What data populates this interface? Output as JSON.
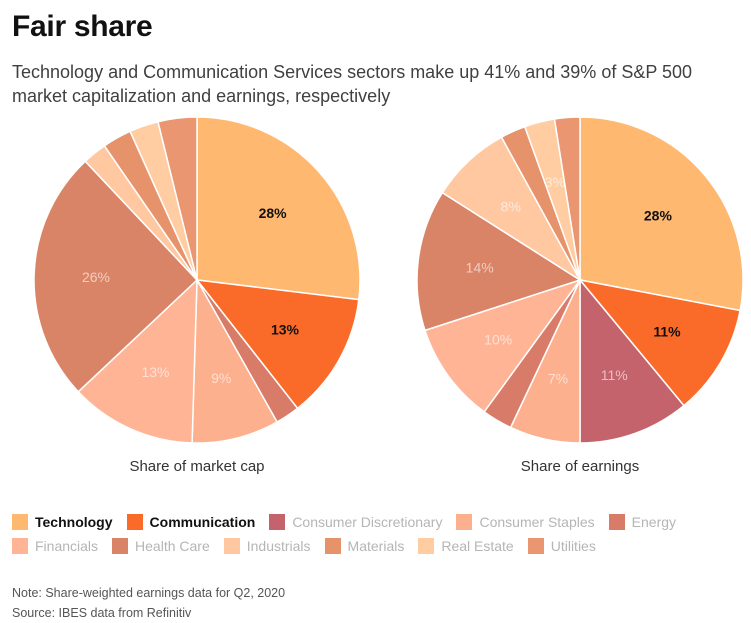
{
  "title": "Fair share",
  "subtitle": "Technology and Communication Services sectors make up 41% and 39% of S&P 500 market capitalization and earnings, respectively",
  "colors": {
    "Technology": "#ffb870",
    "Communication": "#fa6b2a",
    "Consumer Discretionary": "#c4636b",
    "Consumer Staples": "#fdb08d",
    "Energy": "#d87c69",
    "Financials": "#ffb496",
    "Health Care": "#d98466",
    "Industrials": "#ffc8a1",
    "Materials": "#e6926a",
    "Real Estate": "#ffcda1",
    "Utilities": "#ea9671"
  },
  "chart_data": [
    {
      "type": "pie",
      "title": "Share of market cap",
      "slices": [
        {
          "label": "Technology",
          "value": 28,
          "text": "28%"
        },
        {
          "label": "Communication",
          "value": 13,
          "text": "13%"
        },
        {
          "label": "Energy",
          "value": 2.5,
          "text": ""
        },
        {
          "label": "Consumer Staples",
          "value": 9,
          "text": "9%"
        },
        {
          "label": "Financials",
          "value": 13,
          "text": "13%"
        },
        {
          "label": "Health Care",
          "value": 26,
          "text": "26%"
        },
        {
          "label": "Industrials",
          "value": 2.5,
          "text": ""
        },
        {
          "label": "Materials",
          "value": 3,
          "text": ""
        },
        {
          "label": "Real Estate",
          "value": 3,
          "text": ""
        },
        {
          "label": "Utilities",
          "value": 4,
          "text": ""
        }
      ]
    },
    {
      "type": "pie",
      "title": "Share of earnings",
      "slices": [
        {
          "label": "Technology",
          "value": 28,
          "text": "28%"
        },
        {
          "label": "Communication",
          "value": 11,
          "text": "11%"
        },
        {
          "label": "Consumer Discretionary",
          "value": 11,
          "text": "11%"
        },
        {
          "label": "Consumer Staples",
          "value": 7,
          "text": "7%"
        },
        {
          "label": "Energy",
          "value": 3,
          "text": ""
        },
        {
          "label": "Financials",
          "value": 10,
          "text": "10%"
        },
        {
          "label": "Health Care",
          "value": 14,
          "text": "14%"
        },
        {
          "label": "Industrials",
          "value": 8,
          "text": "8%"
        },
        {
          "label": "Materials",
          "value": 2.5,
          "text": ""
        },
        {
          "label": "Real Estate",
          "value": 3,
          "text": "3%"
        },
        {
          "label": "Utilities",
          "value": 2.5,
          "text": ""
        }
      ]
    }
  ],
  "legend": [
    {
      "label": "Technology",
      "highlight": true
    },
    {
      "label": "Communication",
      "highlight": true
    },
    {
      "label": "Consumer Discretionary",
      "highlight": false
    },
    {
      "label": "Consumer Staples",
      "highlight": false
    },
    {
      "label": "Energy",
      "highlight": false
    },
    {
      "label": "Financials",
      "highlight": false
    },
    {
      "label": "Health Care",
      "highlight": false
    },
    {
      "label": "Industrials",
      "highlight": false
    },
    {
      "label": "Materials",
      "highlight": false
    },
    {
      "label": "Real Estate",
      "highlight": false
    },
    {
      "label": "Utilities",
      "highlight": false
    }
  ],
  "highlighted": [
    "Technology",
    "Communication"
  ],
  "note": "Note: Share-weighted earnings data for Q2, 2020",
  "source": "Source: IBES data from Refinitiv"
}
